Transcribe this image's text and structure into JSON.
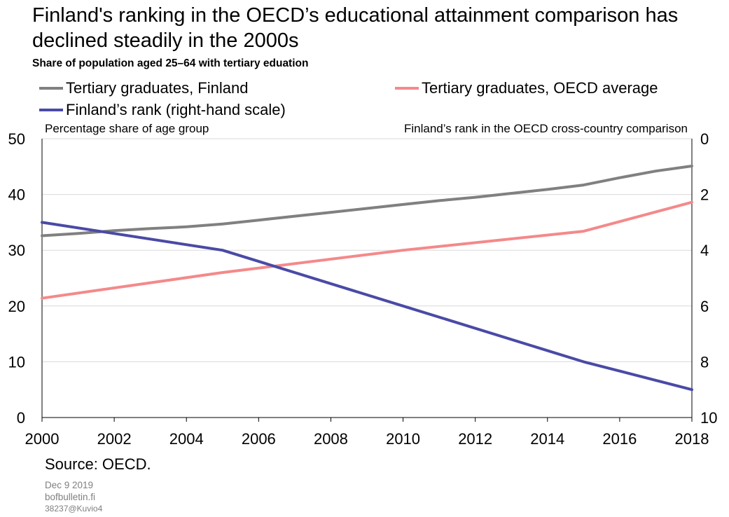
{
  "chart_data": {
    "type": "line",
    "title": "Finland's ranking in the OECD’s educational attainment comparison has declined steadily in the 2000s",
    "subtitle": "Share of population aged 25–64 with tertiary eduation",
    "y_left_label": "Percentage share of age group",
    "y_right_label": "Finland’s rank in the OECD cross-country comparison",
    "x_ticks": [
      "2000",
      "2002",
      "2004",
      "2006",
      "2008",
      "2010",
      "2012",
      "2014",
      "2016",
      "2018"
    ],
    "y_left_ticks": [
      "0",
      "10",
      "20",
      "30",
      "40",
      "50"
    ],
    "y_right_ticks": [
      "0",
      "2",
      "4",
      "6",
      "8",
      "10"
    ],
    "xlim": [
      2000,
      2018
    ],
    "ylim_left": [
      0,
      50
    ],
    "ylim_right": [
      10,
      0
    ],
    "grid": "horizontal",
    "legend_position": "top",
    "series": [
      {
        "name": "Tertiary graduates, Finland",
        "axis": "left",
        "color": "#808080",
        "x": [
          2000,
          2001,
          2002,
          2003,
          2004,
          2005,
          2006,
          2007,
          2008,
          2009,
          2010,
          2011,
          2012,
          2013,
          2014,
          2015,
          2016,
          2017,
          2018
        ],
        "values": [
          32.6,
          33.0,
          33.5,
          33.9,
          34.2,
          34.7,
          35.4,
          36.1,
          36.8,
          37.5,
          38.2,
          38.9,
          39.5,
          40.2,
          40.9,
          41.7,
          43.0,
          44.2,
          45.1
        ]
      },
      {
        "name": "Tertiary graduates, OECD average",
        "axis": "left",
        "color": "#f4898a",
        "x": [
          2000,
          2005,
          2010,
          2015,
          2018
        ],
        "values": [
          21.4,
          26.0,
          30.0,
          33.4,
          38.6
        ]
      },
      {
        "name": "Finland’s rank (right-hand scale)",
        "axis": "right",
        "color": "#4a4aa6",
        "x": [
          2000,
          2005,
          2010,
          2015,
          2018
        ],
        "values": [
          3,
          4,
          6,
          8,
          9
        ]
      }
    ]
  },
  "footer": {
    "source": "Source: OECD.",
    "date": "Dec 9 2019",
    "site": "bofbulletin.fi",
    "code": "38237@Kuvio4"
  }
}
